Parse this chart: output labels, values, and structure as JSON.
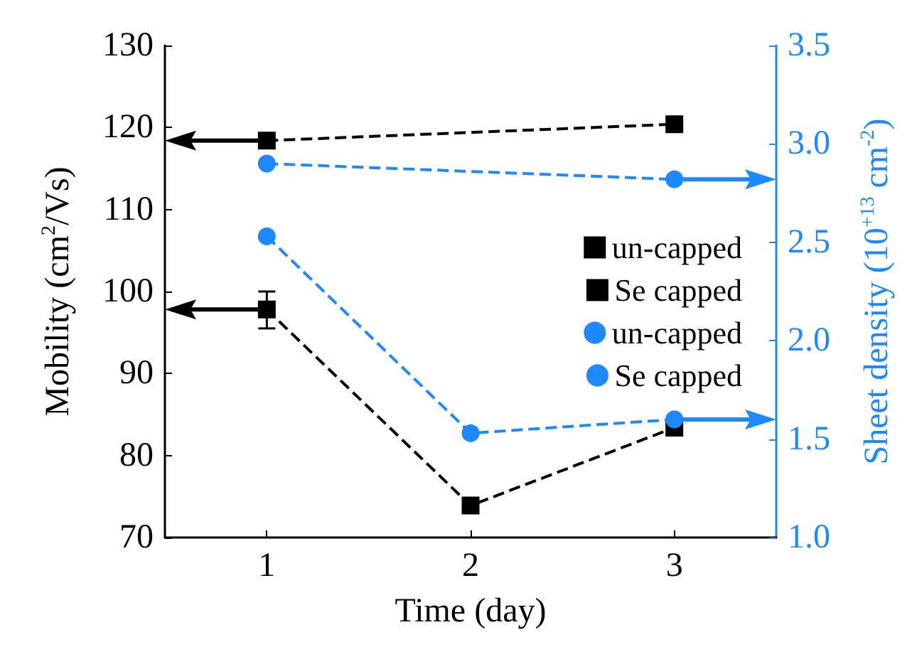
{
  "chart_data": {
    "type": "line",
    "x": [
      1,
      2,
      3
    ],
    "xlabel": "Time (day)",
    "ylabel": "Mobility (cm$^{2}$/Vs)",
    "y2label": "Sheet density (10$^{+13}$ cm$^{-2}$)",
    "xlim": [
      0.5,
      3.5
    ],
    "xticks": [
      1,
      2,
      3
    ],
    "ylim": [
      70,
      130
    ],
    "yticks": [
      70,
      80,
      90,
      100,
      110,
      120,
      130
    ],
    "y2lim": [
      1.0,
      3.5
    ],
    "y2ticks": [
      {
        "value": 1.0,
        "label": "1.0"
      },
      {
        "value": 1.5,
        "label": "1.5"
      },
      {
        "value": 2.0,
        "label": "2.0"
      },
      {
        "value": 2.5,
        "label": "2.5"
      },
      {
        "value": 3.0,
        "label": "3.0"
      },
      {
        "value": 3.5,
        "label": "3.5"
      }
    ],
    "grid": false,
    "legend": "right",
    "line_style": "dashed",
    "series": [
      {
        "name": "un-capped",
        "color": "#000000",
        "marker": "square",
        "axis": "y",
        "values": [
          97.8,
          73.9,
          83.4
        ],
        "errors": [
          [
            95.5,
            100.0
          ],
          null,
          null
        ]
      },
      {
        "name": "Se capped",
        "color": "#000000",
        "marker": "square",
        "axis": "y",
        "values": [
          118.4,
          null,
          120.4
        ]
      },
      {
        "name": "un-capped",
        "color": "#1e88ff",
        "marker": "circle",
        "axis": "y2",
        "values": [
          2.53,
          1.53,
          1.6
        ]
      },
      {
        "name": "Se capped",
        "color": "#1e88ff",
        "marker": "circle",
        "axis": "y2",
        "values": [
          2.9,
          null,
          2.82
        ]
      }
    ]
  }
}
